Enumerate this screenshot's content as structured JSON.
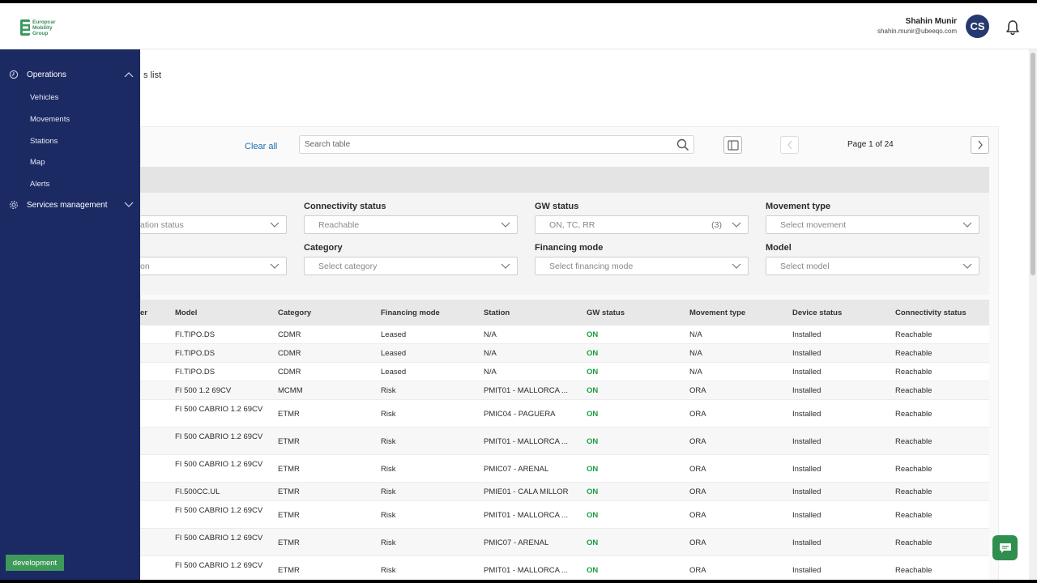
{
  "header": {
    "logo_lines": [
      "Europcar",
      "Mobility",
      "Group"
    ],
    "user_name": "Shahin Munir",
    "user_email": "shahin.munir@ubeeqo.com",
    "avatar_initials": "CS"
  },
  "sidebar": {
    "sections": [
      {
        "label": "Operations",
        "icon": "operations-icon",
        "expanded": true,
        "items": [
          "Vehicles",
          "Movements",
          "Stations",
          "Map",
          "Alerts"
        ]
      },
      {
        "label": "Services management",
        "icon": "gear-icon",
        "expanded": false,
        "items": []
      }
    ],
    "env_badge": "development"
  },
  "main": {
    "title_fragment": "s list",
    "clear_all": "Clear all",
    "search_placeholder": "Search table",
    "page_info": "Page 1 of 24"
  },
  "filters": {
    "row1": [
      {
        "label": "",
        "value": "ation status"
      },
      {
        "label": "Connectivity status",
        "value": "Reachable"
      },
      {
        "label": "GW status",
        "value": "ON, TC, RR",
        "count": "(3)"
      },
      {
        "label": "Movement type",
        "value": "Select movement"
      }
    ],
    "row2": [
      {
        "label": "",
        "value": "on"
      },
      {
        "label": "Category",
        "value": "Select category"
      },
      {
        "label": "Financing mode",
        "value": "Select financing mode"
      },
      {
        "label": "Model",
        "value": "Select model"
      }
    ]
  },
  "table": {
    "columns": [
      "er",
      "Model",
      "Category",
      "Financing mode",
      "Station",
      "GW status",
      "Movement type",
      "Device status",
      "Connectivity status"
    ],
    "rows": [
      {
        "model": "FI.TIPO.DS",
        "category": "CDMR",
        "financing": "Leased",
        "station": "N/A",
        "gw": "ON",
        "movement": "N/A",
        "device": "Installed",
        "connectivity": "Reachable"
      },
      {
        "model": "FI.TIPO.DS",
        "category": "CDMR",
        "financing": "Leased",
        "station": "N/A",
        "gw": "ON",
        "movement": "N/A",
        "device": "Installed",
        "connectivity": "Reachable"
      },
      {
        "model": "FI.TIPO.DS",
        "category": "CDMR",
        "financing": "Leased",
        "station": "N/A",
        "gw": "ON",
        "movement": "N/A",
        "device": "Installed",
        "connectivity": "Reachable"
      },
      {
        "model": "FI 500 1.2 69CV",
        "category": "MCMM",
        "financing": "Risk",
        "station": "PMIT01 - MALLORCA ...",
        "gw": "ON",
        "movement": "ORA",
        "device": "Installed",
        "connectivity": "Reachable"
      },
      {
        "model": "FI 500 CABRIO 1.2 69CV",
        "category": "ETMR",
        "financing": "Risk",
        "station": "PMIC04 - PAGUERA",
        "gw": "ON",
        "movement": "ORA",
        "device": "Installed",
        "connectivity": "Reachable"
      },
      {
        "model": "FI 500 CABRIO 1.2 69CV",
        "category": "ETMR",
        "financing": "Risk",
        "station": "PMIT01 - MALLORCA ...",
        "gw": "ON",
        "movement": "ORA",
        "device": "Installed",
        "connectivity": "Reachable"
      },
      {
        "model": "FI 500 CABRIO 1.2 69CV",
        "category": "ETMR",
        "financing": "Risk",
        "station": "PMIC07 - ARENAL",
        "gw": "ON",
        "movement": "ORA",
        "device": "Installed",
        "connectivity": "Reachable"
      },
      {
        "model": "FI.500CC.UL",
        "category": "ETMR",
        "financing": "Risk",
        "station": "PMIE01 - CALA MILLOR",
        "gw": "ON",
        "movement": "ORA",
        "device": "Installed",
        "connectivity": "Reachable"
      },
      {
        "model": "FI 500 CABRIO 1.2 69CV",
        "category": "ETMR",
        "financing": "Risk",
        "station": "PMIT01 - MALLORCA ...",
        "gw": "ON",
        "movement": "ORA",
        "device": "Installed",
        "connectivity": "Reachable"
      },
      {
        "model": "FI 500 CABRIO 1.2 69CV",
        "category": "ETMR",
        "financing": "Risk",
        "station": "PMIC07 - ARENAL",
        "gw": "ON",
        "movement": "ORA",
        "device": "Installed",
        "connectivity": "Reachable"
      },
      {
        "model": "FI 500 CABRIO 1.2 69CV",
        "category": "ETMR",
        "financing": "Risk",
        "station": "PMIT01 - MALLORCA ...",
        "gw": "ON",
        "movement": "ORA",
        "device": "Installed",
        "connectivity": "Reachable"
      }
    ]
  },
  "colors": {
    "sidebar_bg": "#1c2a63",
    "accent_blue": "#1f6fb5",
    "status_on": "#1b9e3e",
    "env_badge": "#3d9a5a",
    "avatar": "#263870"
  }
}
